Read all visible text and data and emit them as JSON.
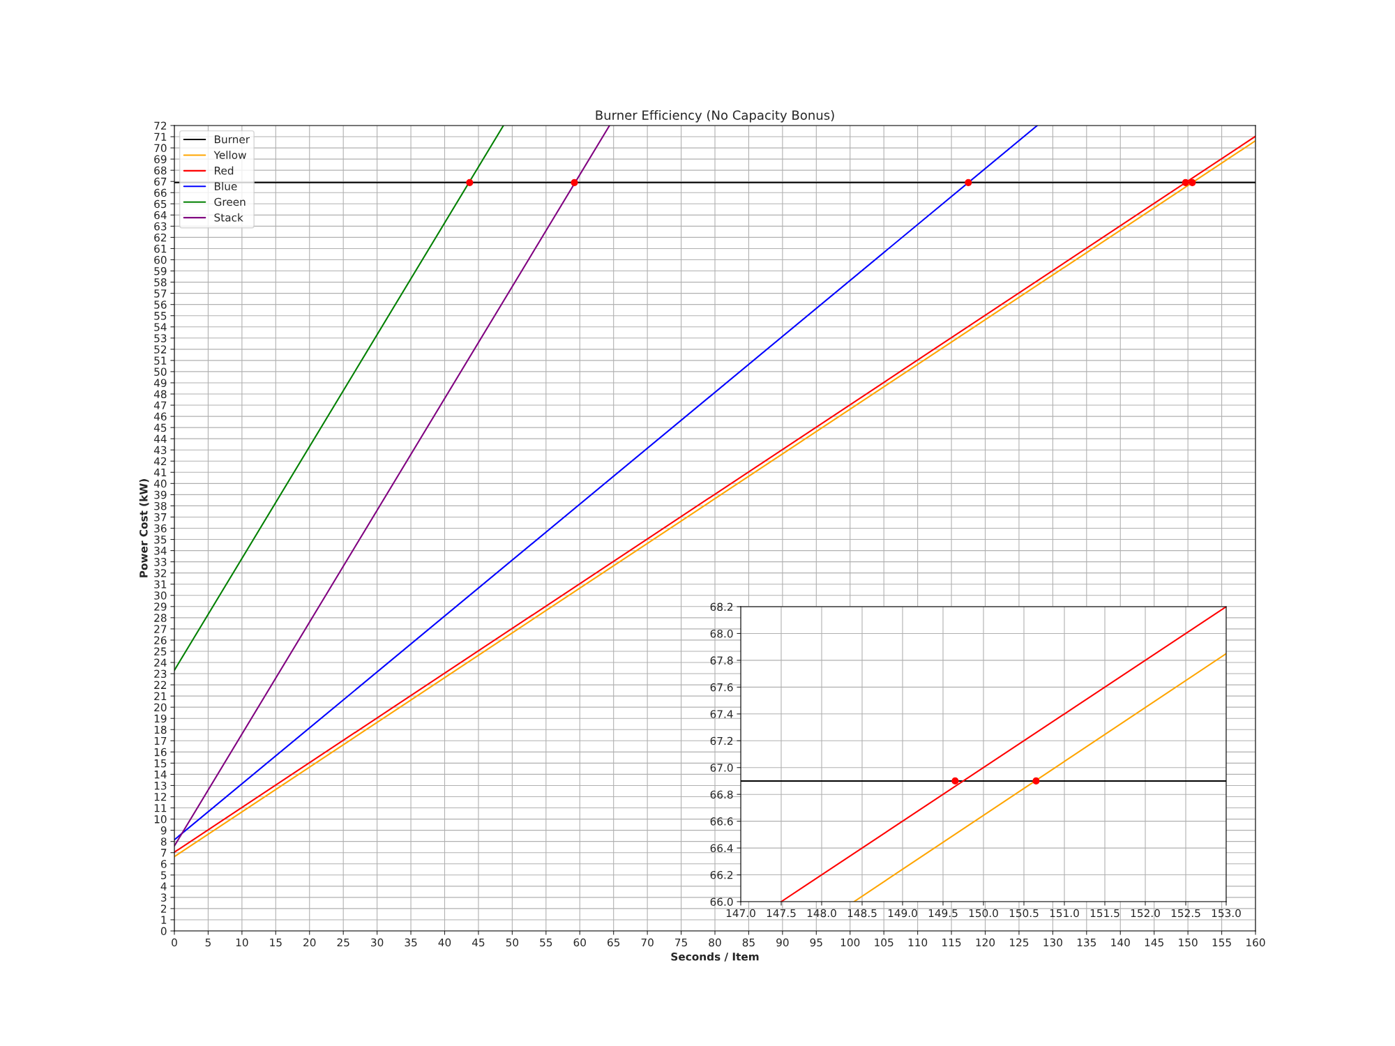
{
  "chart_data": [
    {
      "type": "line",
      "title": "Burner Efficiency (No Capacity Bonus)",
      "xlabel": "Seconds / Item",
      "ylabel": "Power Cost (kW)",
      "xlim": [
        0,
        160
      ],
      "ylim": [
        0,
        72
      ],
      "xticks": [
        0,
        5,
        10,
        15,
        20,
        25,
        30,
        35,
        40,
        45,
        50,
        55,
        60,
        65,
        70,
        75,
        80,
        85,
        90,
        95,
        100,
        105,
        110,
        115,
        120,
        125,
        130,
        135,
        140,
        145,
        150,
        155,
        160
      ],
      "yticks": [
        0,
        1,
        2,
        3,
        4,
        5,
        6,
        7,
        8,
        9,
        10,
        11,
        12,
        13,
        14,
        15,
        16,
        17,
        18,
        19,
        20,
        21,
        22,
        23,
        24,
        25,
        26,
        27,
        28,
        29,
        30,
        31,
        32,
        33,
        34,
        35,
        36,
        37,
        38,
        39,
        40,
        41,
        42,
        43,
        44,
        45,
        46,
        47,
        48,
        49,
        50,
        51,
        52,
        53,
        54,
        55,
        56,
        57,
        58,
        59,
        60,
        61,
        62,
        63,
        64,
        65,
        66,
        67,
        68,
        69,
        70,
        71,
        72
      ],
      "grid": true,
      "legend": "top left",
      "marker": "none",
      "line_style": "solid",
      "series": [
        {
          "name": "Burner",
          "color": "#000000",
          "x": [
            0,
            160
          ],
          "values": [
            66.9,
            66.9
          ]
        },
        {
          "name": "Yellow",
          "color": "#ffa500",
          "x": [
            0,
            160
          ],
          "values": [
            6.64,
            70.64
          ]
        },
        {
          "name": "Red",
          "color": "#ff0000",
          "x": [
            0,
            160
          ],
          "values": [
            7.04,
            71.04
          ]
        },
        {
          "name": "Blue",
          "color": "#0000ff",
          "x": [
            0,
            127.7
          ],
          "values": [
            8.15,
            72
          ]
        },
        {
          "name": "Green",
          "color": "#008000",
          "x": [
            0,
            48.7
          ],
          "values": [
            23.3,
            72
          ]
        },
        {
          "name": "Stack",
          "color": "#800080",
          "x": [
            0,
            64.4
          ],
          "values": [
            7.6,
            72
          ]
        },
        {
          "type": "scatter",
          "color": "#ff0000",
          "marker": "circle",
          "x": [
            43.7,
            59.2,
            117.5,
            149.65,
            150.65
          ],
          "values": [
            66.9,
            66.9,
            66.9,
            66.9,
            66.9
          ]
        }
      ]
    },
    {
      "type": "line",
      "xlim": [
        147,
        153
      ],
      "ylim": [
        66.0,
        68.2
      ],
      "xticks": [
        {
          "value": 147,
          "label": "147.0"
        },
        {
          "value": 147.5,
          "label": "147.5"
        },
        {
          "value": 148,
          "label": "148.0"
        },
        {
          "value": 148.5,
          "label": "148.5"
        },
        {
          "value": 149,
          "label": "149.0"
        },
        {
          "value": 149.5,
          "label": "149.5"
        },
        {
          "value": 150,
          "label": "150.0"
        },
        {
          "value": 150.5,
          "label": "150.5"
        },
        {
          "value": 151,
          "label": "151.0"
        },
        {
          "value": 151.5,
          "label": "151.5"
        },
        {
          "value": 152,
          "label": "152.0"
        },
        {
          "value": 152.5,
          "label": "152.5"
        },
        {
          "value": 153,
          "label": "153.0"
        }
      ],
      "yticks": [
        {
          "value": 66,
          "label": "66.0"
        },
        {
          "value": 66.2,
          "label": "66.2"
        },
        {
          "value": 66.4,
          "label": "66.4"
        },
        {
          "value": 66.6,
          "label": "66.6"
        },
        {
          "value": 66.8,
          "label": "66.8"
        },
        {
          "value": 67,
          "label": "67.0"
        },
        {
          "value": 67.2,
          "label": "67.2"
        },
        {
          "value": 67.4,
          "label": "67.4"
        },
        {
          "value": 67.6,
          "label": "67.6"
        },
        {
          "value": 67.8,
          "label": "67.8"
        },
        {
          "value": 68,
          "label": "68.0"
        },
        {
          "value": 68.2,
          "label": "68.2"
        }
      ],
      "grid": true,
      "marker": "none",
      "line_style": "solid",
      "series": [
        {
          "color": "#000000",
          "x": [
            147,
            153
          ],
          "values": [
            66.9,
            66.9
          ]
        },
        {
          "color": "#ffa500",
          "x": [
            148.4,
            153
          ],
          "values": [
            66.0,
            67.85
          ]
        },
        {
          "color": "#ff0000",
          "x": [
            147.5,
            153
          ],
          "values": [
            66.0,
            68.2
          ]
        },
        {
          "type": "scatter",
          "color": "#ff0000",
          "marker": "circle",
          "x": [
            149.65,
            150.65
          ],
          "values": [
            66.9,
            66.9
          ]
        }
      ]
    }
  ]
}
